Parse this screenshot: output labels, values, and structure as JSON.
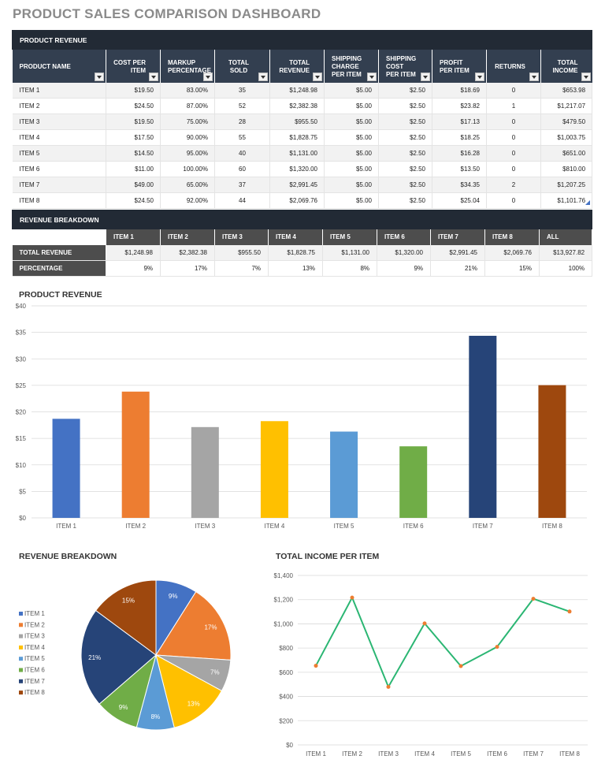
{
  "title": "PRODUCT SALES COMPARISON DASHBOARD",
  "product_revenue_table": {
    "section_title": "PRODUCT REVENUE",
    "columns": [
      "PRODUCT NAME",
      "COST PER ITEM",
      "MARKUP PERCENTAGE",
      "TOTAL SOLD",
      "TOTAL REVENUE",
      "SHIPPING CHARGE PER ITEM",
      "SHIPPING COST PER ITEM",
      "PROFIT PER ITEM",
      "RETURNS",
      "TOTAL INCOME"
    ],
    "rows": [
      [
        "ITEM 1",
        "$19.50",
        "83.00%",
        "35",
        "$1,248.98",
        "$5.00",
        "$2.50",
        "$18.69",
        "0",
        "$653.98"
      ],
      [
        "ITEM 2",
        "$24.50",
        "87.00%",
        "52",
        "$2,382.38",
        "$5.00",
        "$2.50",
        "$23.82",
        "1",
        "$1,217.07"
      ],
      [
        "ITEM 3",
        "$19.50",
        "75.00%",
        "28",
        "$955.50",
        "$5.00",
        "$2.50",
        "$17.13",
        "0",
        "$479.50"
      ],
      [
        "ITEM 4",
        "$17.50",
        "90.00%",
        "55",
        "$1,828.75",
        "$5.00",
        "$2.50",
        "$18.25",
        "0",
        "$1,003.75"
      ],
      [
        "ITEM 5",
        "$14.50",
        "95.00%",
        "40",
        "$1,131.00",
        "$5.00",
        "$2.50",
        "$16.28",
        "0",
        "$651.00"
      ],
      [
        "ITEM 6",
        "$11.00",
        "100.00%",
        "60",
        "$1,320.00",
        "$5.00",
        "$2.50",
        "$13.50",
        "0",
        "$810.00"
      ],
      [
        "ITEM 7",
        "$49.00",
        "65.00%",
        "37",
        "$2,991.45",
        "$5.00",
        "$2.50",
        "$34.35",
        "2",
        "$1,207.25"
      ],
      [
        "ITEM 8",
        "$24.50",
        "92.00%",
        "44",
        "$2,069.76",
        "$5.00",
        "$2.50",
        "$25.04",
        "0",
        "$1,101.76"
      ]
    ]
  },
  "revenue_breakdown_table": {
    "section_title": "REVENUE BREAKDOWN",
    "columns": [
      "ITEM 1",
      "ITEM 2",
      "ITEM 3",
      "ITEM 4",
      "ITEM 5",
      "ITEM 6",
      "ITEM 7",
      "ITEM 8",
      "ALL"
    ],
    "rows": [
      {
        "label": "TOTAL REVENUE",
        "values": [
          "$1,248.98",
          "$2,382.38",
          "$955.50",
          "$1,828.75",
          "$1,131.00",
          "$1,320.00",
          "$2,991.45",
          "$2,069.76",
          "$13,927.82"
        ]
      },
      {
        "label": "PERCENTAGE",
        "values": [
          "9%",
          "17%",
          "7%",
          "13%",
          "8%",
          "9%",
          "21%",
          "15%",
          "100%"
        ]
      }
    ]
  },
  "item_colors": [
    "#4472c4",
    "#ed7d31",
    "#a5a5a5",
    "#ffc000",
    "#5b9bd5",
    "#70ad47",
    "#264478",
    "#9e480e"
  ],
  "chart_data": [
    {
      "type": "bar",
      "title": "PRODUCT REVENUE",
      "categories": [
        "ITEM 1",
        "ITEM 2",
        "ITEM 3",
        "ITEM 4",
        "ITEM 5",
        "ITEM 6",
        "ITEM 7",
        "ITEM 8"
      ],
      "values": [
        18.69,
        23.82,
        17.13,
        18.25,
        16.28,
        13.5,
        34.35,
        25.04
      ],
      "ylim": [
        0,
        40
      ],
      "yticks": [
        "$0",
        "$5",
        "$10",
        "$15",
        "$20",
        "$25",
        "$30",
        "$35",
        "$40"
      ],
      "grid": true
    },
    {
      "type": "pie",
      "title": "REVENUE BREAKDOWN",
      "categories": [
        "ITEM 1",
        "ITEM 2",
        "ITEM 3",
        "ITEM 4",
        "ITEM 5",
        "ITEM 6",
        "ITEM 7",
        "ITEM 8"
      ],
      "values": [
        1248.98,
        2382.38,
        955.5,
        1828.75,
        1131.0,
        1320.0,
        2991.45,
        2069.76
      ],
      "labels": [
        "9%",
        "17%",
        "7%",
        "13%",
        "8%",
        "9%",
        "21%",
        "15%"
      ],
      "legend": "left"
    },
    {
      "type": "line",
      "title": "TOTAL INCOME PER ITEM",
      "categories": [
        "ITEM 1",
        "ITEM 2",
        "ITEM 3",
        "ITEM 4",
        "ITEM 5",
        "ITEM 6",
        "ITEM 7",
        "ITEM 8"
      ],
      "values": [
        653.98,
        1217.07,
        479.5,
        1003.75,
        651.0,
        810.0,
        1207.25,
        1101.76
      ],
      "ylim": [
        0,
        1400
      ],
      "yticks": [
        "$0",
        "$200",
        "$400",
        "$600",
        "$800",
        "$1,000",
        "$1,200",
        "$1,400"
      ],
      "line_color": "#2bb673",
      "marker_color": "#ed7d31",
      "grid": true
    }
  ]
}
